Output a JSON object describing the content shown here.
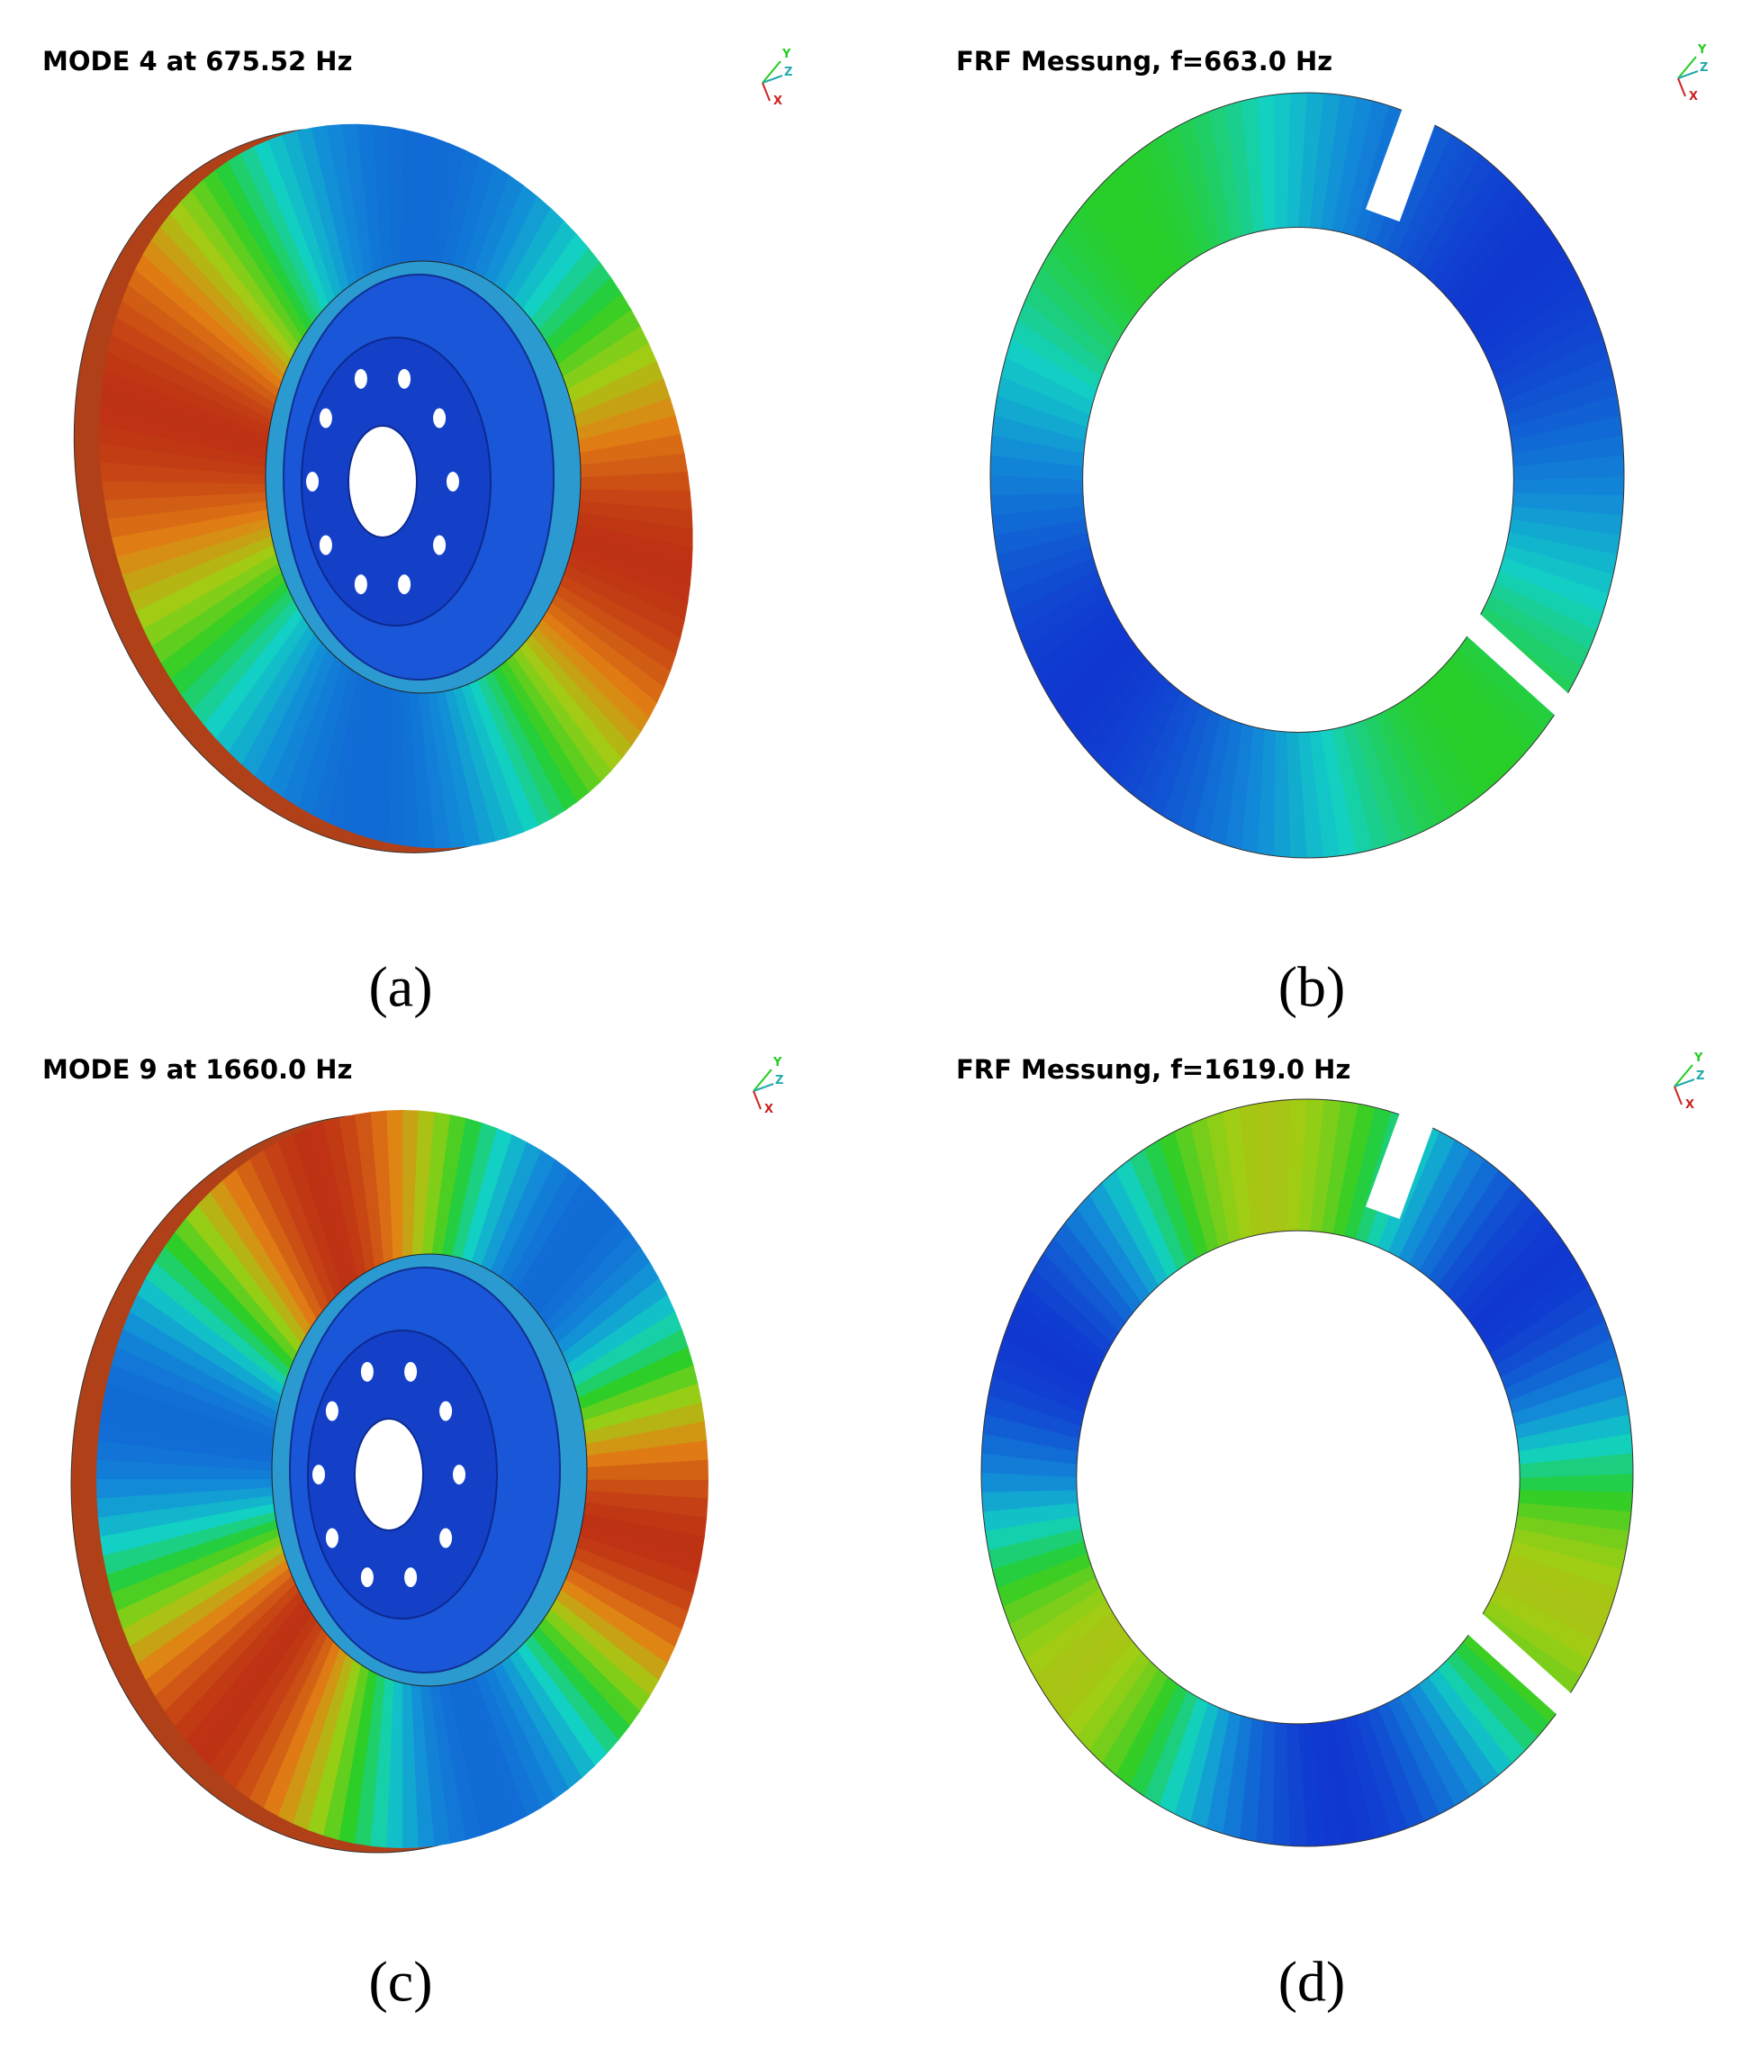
{
  "panels": [
    {
      "title": "MODE 4 at 675.52 Hz",
      "label": "(a)",
      "triad": [
        "Y",
        "Z",
        "X"
      ]
    },
    {
      "title": "FRF Messung, f=663.0 Hz",
      "label": "(b)",
      "triad": [
        "Y",
        "Z",
        "X"
      ]
    },
    {
      "title": "MODE 9 at 1660.0 Hz",
      "label": "(c)",
      "triad": [
        "Y",
        "Z",
        "X"
      ]
    },
    {
      "title": "FRF Messung, f=1619.0 Hz",
      "label": "(d)",
      "triad": [
        "Y",
        "Z",
        "X"
      ]
    }
  ]
}
